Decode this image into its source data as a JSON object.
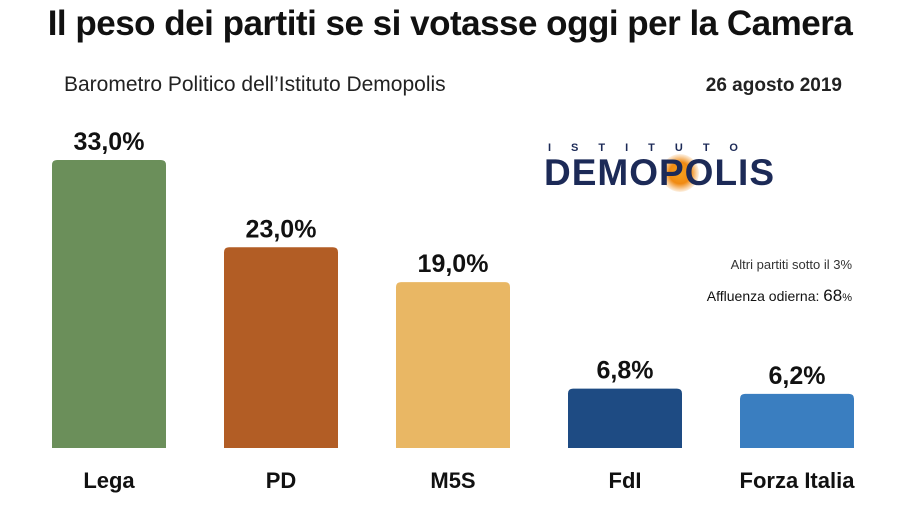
{
  "header": {
    "title": "Il peso dei partiti se si votasse oggi per la Camera",
    "subtitle": "Barometro Politico dell’Istituto Demopolis",
    "date": "26 agosto 2019"
  },
  "logo": {
    "top_text": "ISTITUTO",
    "main_text": "DEMOPOLIS"
  },
  "notes": {
    "others": "Altri partiti sotto il 3%",
    "turnout_label": "Affluenza odierna:",
    "turnout_value": "68",
    "turnout_unit": "%"
  },
  "chart_data": {
    "type": "bar",
    "categories": [
      "Lega",
      "PD",
      "M5S",
      "FdI",
      "Forza Italia"
    ],
    "values": [
      33.0,
      23.0,
      19.0,
      6.8,
      6.2
    ],
    "labels": [
      "33,0%",
      "23,0%",
      "19,0%",
      "6,8%",
      "6,2%"
    ],
    "colors": [
      "#6b8f5a",
      "#b25d25",
      "#e9b764",
      "#1e4b83",
      "#3a7ec0"
    ],
    "ylim": [
      0,
      33.0
    ],
    "grid": false
  }
}
